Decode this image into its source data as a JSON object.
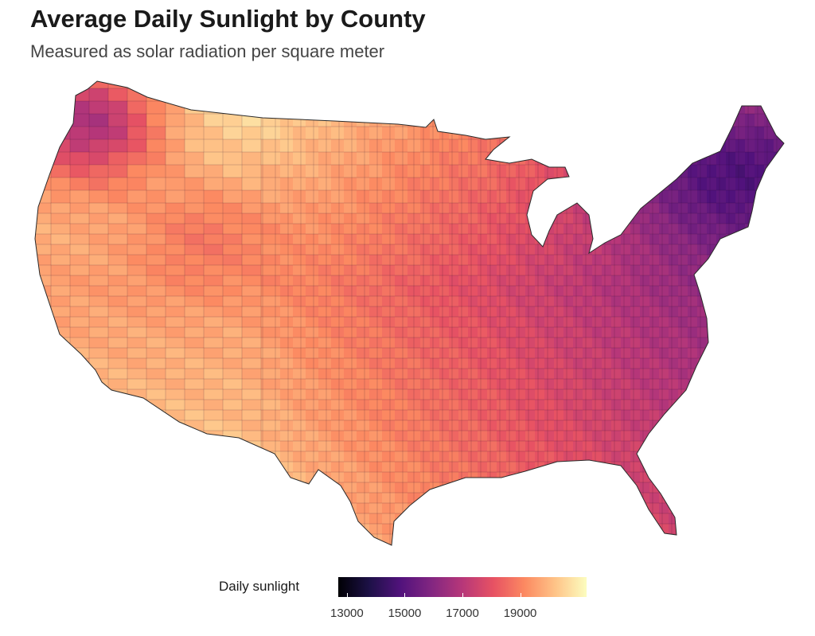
{
  "header": {
    "title": "Average Daily Sunlight by County",
    "subtitle": "Measured as solar radiation per square meter"
  },
  "legend": {
    "title": "Daily sunlight",
    "ticks": [
      "13000",
      "15000",
      "17000",
      "19000"
    ],
    "tick_values": [
      13000,
      15000,
      17000,
      19000
    ],
    "range": [
      12700,
      21300
    ],
    "palette": [
      "#000004",
      "#1d1147",
      "#51127c",
      "#822681",
      "#b73779",
      "#e75263",
      "#fc8961",
      "#fec488",
      "#fcfdbf"
    ]
  },
  "map": {
    "region": "contiguous United States",
    "unit": "county",
    "colorscale": "magma",
    "value_trend": "highest in the southwest, lowest in the northwest and northeast"
  }
}
